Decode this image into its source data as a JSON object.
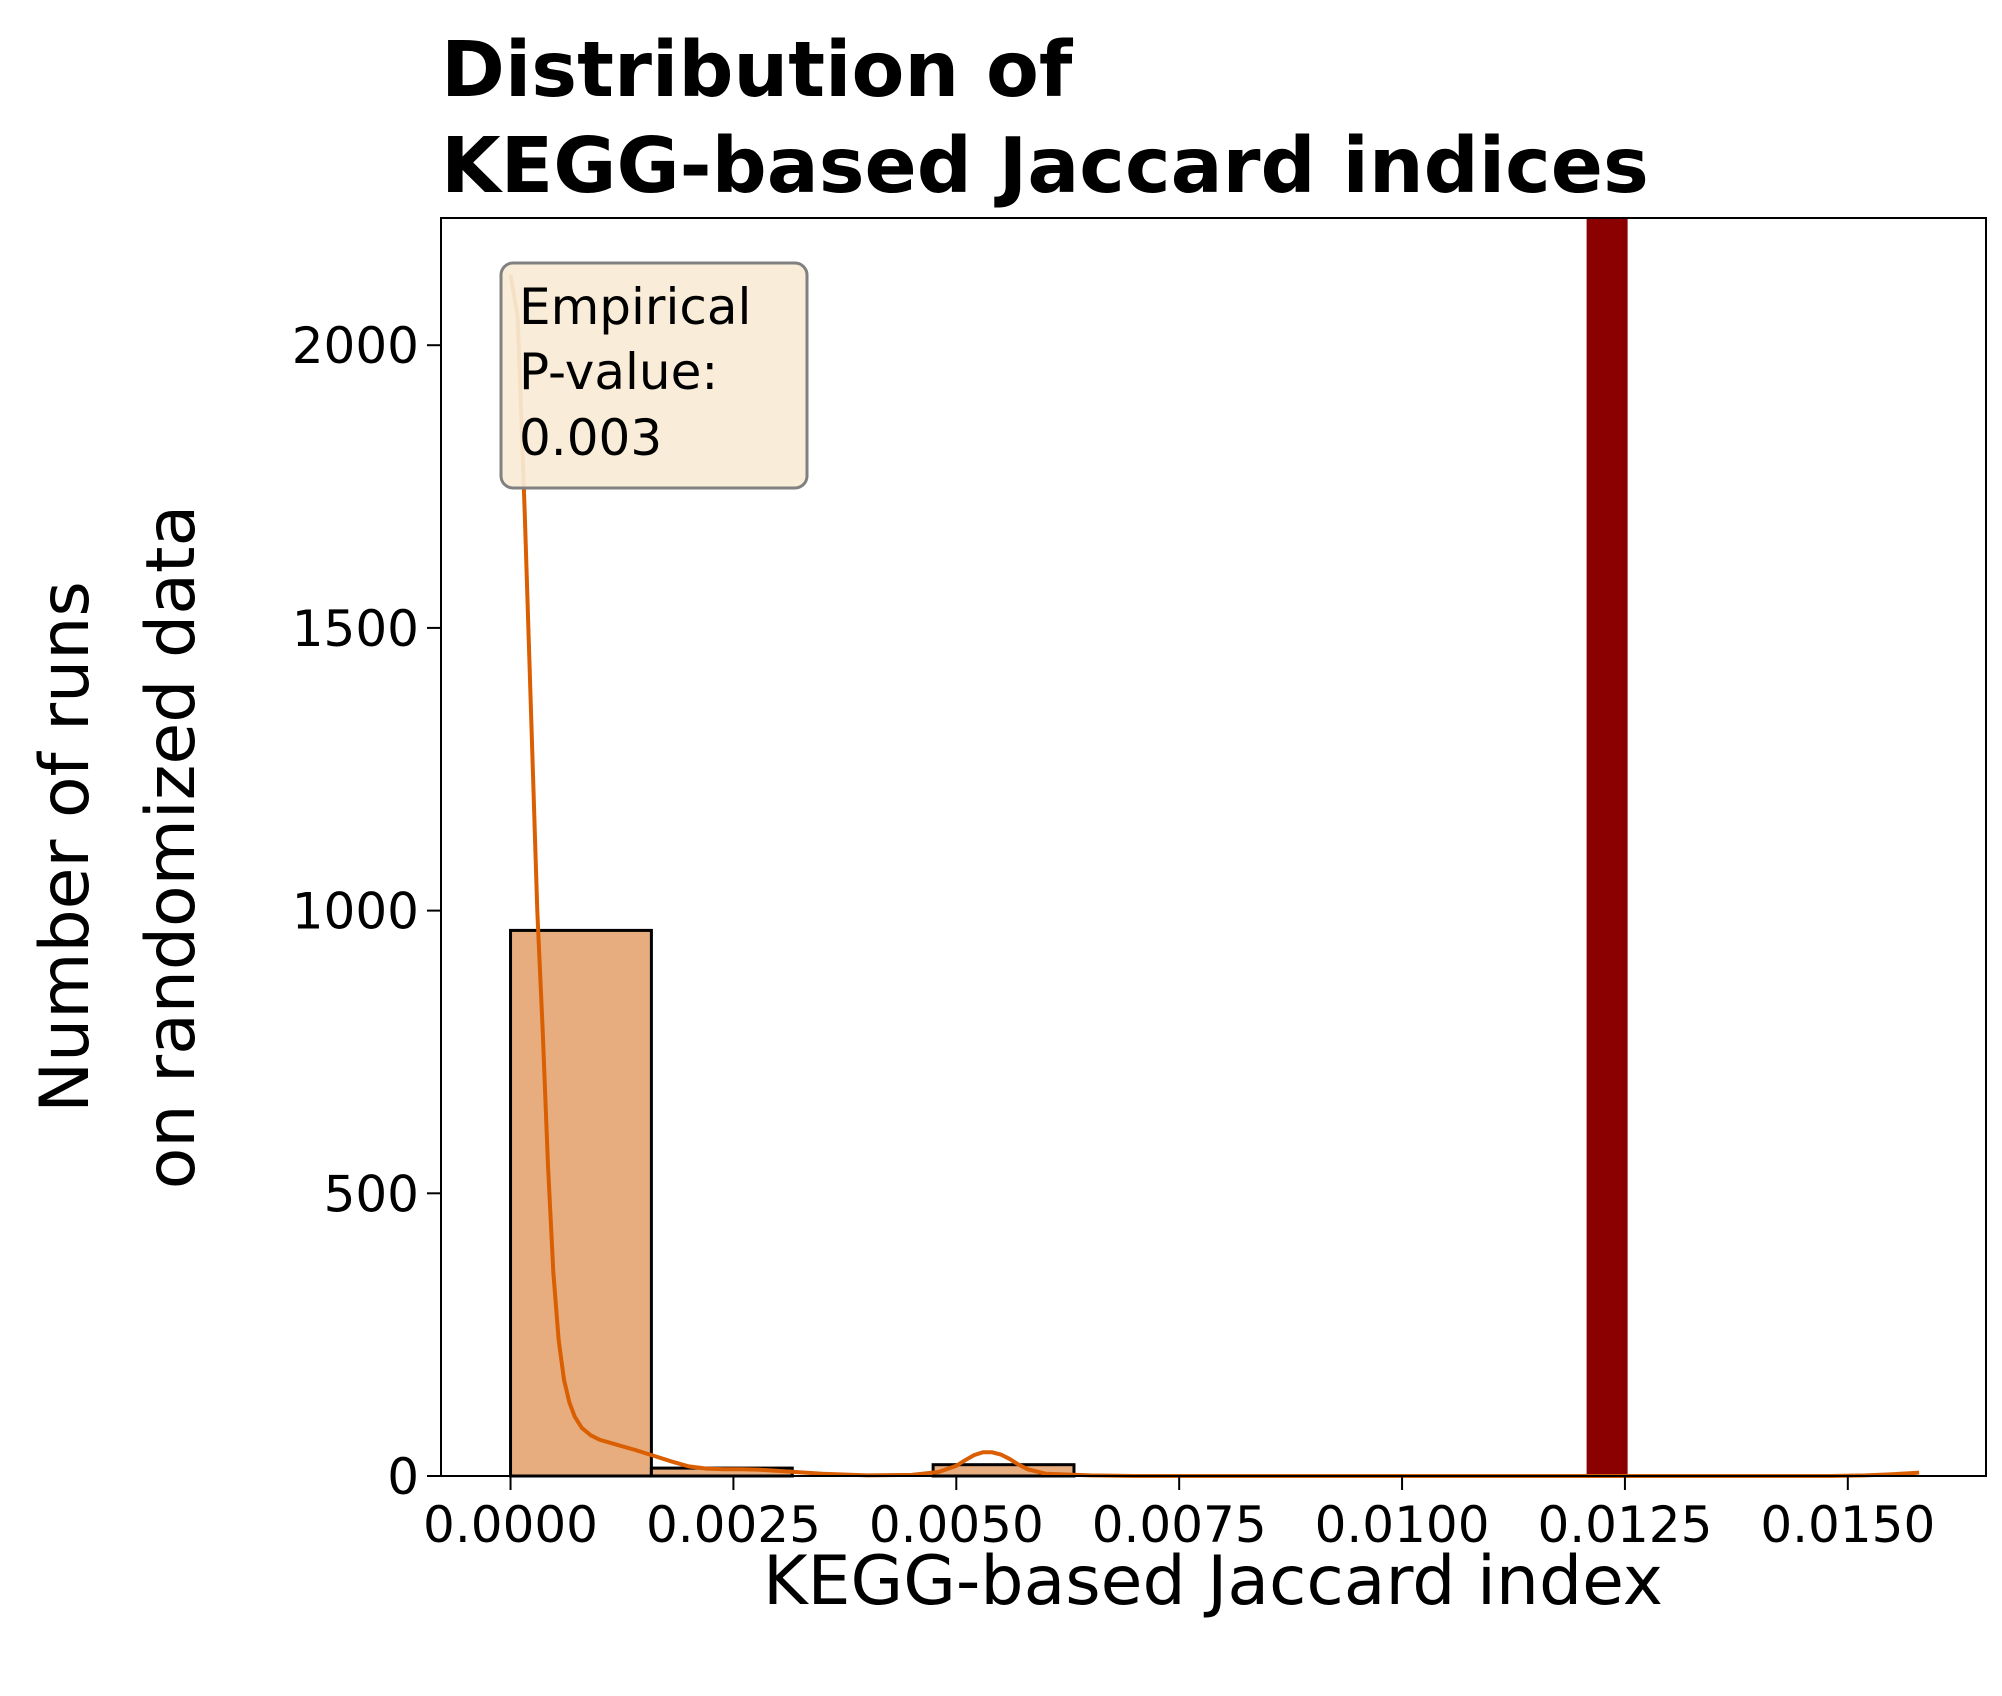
{
  "chart_data": {
    "type": "bar",
    "title_lines": [
      "Distribution of",
      "KEGG-based Jaccard indices"
    ],
    "xlabel": "KEGG-based Jaccard index",
    "ylabel_lines": [
      "Number of runs",
      "on randomized data"
    ],
    "xlim": [
      -0.00078,
      0.01655
    ],
    "ylim": [
      0,
      2225
    ],
    "xticks": [
      0.0,
      0.0025,
      0.005,
      0.0075,
      0.01,
      0.0125,
      0.015
    ],
    "xtick_labels": [
      "0.0000",
      "0.0025",
      "0.0050",
      "0.0075",
      "0.0100",
      "0.0125",
      "0.0150"
    ],
    "yticks": [
      0,
      500,
      1000,
      1500,
      2000
    ],
    "ytick_labels": [
      "0",
      "500",
      "1000",
      "1500",
      "2000"
    ],
    "grid": false,
    "bins": [
      {
        "x0": 0.0,
        "x1": 0.00158,
        "count": 965
      },
      {
        "x0": 0.00158,
        "x1": 0.00316,
        "count": 14
      },
      {
        "x0": 0.00316,
        "x1": 0.00474,
        "count": 0
      },
      {
        "x0": 0.00474,
        "x1": 0.00632,
        "count": 20
      },
      {
        "x0": 0.00632,
        "x1": 0.0079,
        "count": 0
      },
      {
        "x0": 0.0079,
        "x1": 0.00948,
        "count": 0
      },
      {
        "x0": 0.00948,
        "x1": 0.01106,
        "count": 0
      },
      {
        "x0": 0.01106,
        "x1": 0.01264,
        "count": 0
      },
      {
        "x0": 0.01264,
        "x1": 0.01422,
        "count": 0
      },
      {
        "x0": 0.01422,
        "x1": 0.0158,
        "count": 0
      }
    ],
    "kde": {
      "x": [
        0.0,
        8e-05,
        0.00016,
        0.00024,
        0.0003,
        0.00036,
        0.00042,
        0.00048,
        0.00054,
        0.0006,
        0.00066,
        0.00072,
        0.0008,
        0.0009,
        0.001,
        0.0012,
        0.0014,
        0.0016,
        0.0018,
        0.002,
        0.0022,
        0.0024,
        0.0026,
        0.0028,
        0.003,
        0.0035,
        0.004,
        0.0045,
        0.0048,
        0.005,
        0.0051,
        0.0052,
        0.0053,
        0.0054,
        0.0055,
        0.0056,
        0.0057,
        0.0058,
        0.006,
        0.0065,
        0.007,
        0.008,
        0.009,
        0.01,
        0.011,
        0.012,
        0.013,
        0.014,
        0.0148,
        0.0152,
        0.0155,
        0.0158
      ],
      "y": [
        2125,
        2050,
        1700,
        1300,
        1000,
        790,
        550,
        360,
        240,
        170,
        130,
        105,
        85,
        72,
        64,
        55,
        46,
        36,
        26,
        17,
        13,
        12,
        12,
        11,
        9,
        4,
        1,
        2,
        7,
        18,
        28,
        37,
        42,
        42,
        38,
        30,
        20,
        12,
        4,
        1,
        0,
        0,
        0,
        0,
        0,
        0,
        0,
        0,
        0,
        1,
        3,
        6
      ]
    },
    "observed_value": 0.0123,
    "colors": {
      "bar_fill": "#e8ad7e",
      "bar_edge": "#000000",
      "kde_line": "#d95f02",
      "observed_line": "#8b0000",
      "annotation_fill": "#f8ecd6",
      "annotation_edge": "#808080"
    }
  },
  "annotation": {
    "lines": [
      "Empirical",
      "P-value:",
      "0.003"
    ]
  }
}
